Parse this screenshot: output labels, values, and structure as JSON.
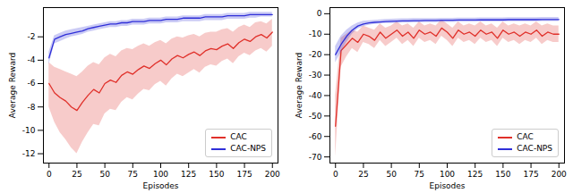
{
  "chart_data": [
    {
      "type": "line",
      "xlabel": "Episodes",
      "ylabel": "Average Reward",
      "x": [
        0,
        5,
        10,
        15,
        20,
        25,
        30,
        35,
        40,
        45,
        50,
        55,
        60,
        65,
        70,
        75,
        80,
        85,
        90,
        95,
        100,
        105,
        110,
        115,
        120,
        125,
        130,
        135,
        140,
        145,
        150,
        155,
        160,
        165,
        170,
        175,
        180,
        185,
        190,
        195,
        200
      ],
      "xlim": [
        -5,
        205
      ],
      "xticks": [
        0,
        25,
        50,
        75,
        100,
        125,
        150,
        175,
        200
      ],
      "ylim": [
        -12.8,
        0.5
      ],
      "yticks": [
        -2,
        -4,
        -6,
        -8,
        -10,
        -12
      ],
      "legend": "lower right",
      "series": [
        {
          "name": "CAC",
          "color": "#e0302a",
          "values": [
            -6.0,
            -6.8,
            -7.2,
            -7.5,
            -8.0,
            -8.3,
            -7.6,
            -7.0,
            -6.5,
            -6.8,
            -6.0,
            -5.7,
            -5.9,
            -5.3,
            -5.0,
            -5.2,
            -4.8,
            -4.5,
            -4.7,
            -4.3,
            -4.0,
            -4.4,
            -3.9,
            -3.6,
            -3.8,
            -3.5,
            -3.3,
            -3.6,
            -3.2,
            -3.0,
            -3.1,
            -2.8,
            -2.6,
            -3.0,
            -2.5,
            -2.2,
            -2.4,
            -2.0,
            -1.8,
            -2.1,
            -1.6
          ],
          "lower": [
            -8.0,
            -9.3,
            -10.2,
            -10.8,
            -11.5,
            -12.0,
            -11.0,
            -10.2,
            -9.5,
            -9.6,
            -8.6,
            -8.2,
            -8.3,
            -7.6,
            -7.2,
            -7.4,
            -6.9,
            -6.5,
            -6.6,
            -6.1,
            -5.8,
            -6.2,
            -5.6,
            -5.2,
            -5.4,
            -5.1,
            -4.8,
            -5.1,
            -4.6,
            -4.4,
            -4.5,
            -4.1,
            -3.9,
            -4.3,
            -3.7,
            -3.4,
            -3.6,
            -3.2,
            -3.0,
            -3.3,
            -2.8
          ],
          "upper": [
            -4.2,
            -4.6,
            -4.8,
            -5.0,
            -5.2,
            -5.4,
            -5.0,
            -4.5,
            -4.2,
            -4.4,
            -3.8,
            -3.5,
            -3.7,
            -3.2,
            -3.0,
            -3.1,
            -2.8,
            -2.6,
            -2.8,
            -2.5,
            -2.3,
            -2.6,
            -2.2,
            -2.0,
            -2.1,
            -1.9,
            -1.8,
            -2.0,
            -1.7,
            -1.6,
            -1.6,
            -1.4,
            -1.3,
            -1.6,
            -1.2,
            -1.0,
            -1.2,
            -0.8,
            -0.7,
            -0.9,
            -0.5
          ]
        },
        {
          "name": "CAC-NPS",
          "color": "#2f2fd8",
          "values": [
            -3.8,
            -2.2,
            -2.0,
            -1.8,
            -1.7,
            -1.6,
            -1.5,
            -1.3,
            -1.2,
            -1.1,
            -1.0,
            -0.9,
            -0.9,
            -0.8,
            -0.8,
            -0.7,
            -0.7,
            -0.7,
            -0.6,
            -0.6,
            -0.6,
            -0.5,
            -0.5,
            -0.5,
            -0.4,
            -0.4,
            -0.4,
            -0.4,
            -0.3,
            -0.3,
            -0.3,
            -0.3,
            -0.2,
            -0.2,
            -0.2,
            -0.2,
            -0.1,
            -0.1,
            -0.1,
            -0.1,
            -0.1
          ],
          "lower": [
            -4.4,
            -2.6,
            -2.4,
            -2.2,
            -2.0,
            -1.9,
            -1.8,
            -1.6,
            -1.5,
            -1.4,
            -1.3,
            -1.2,
            -1.2,
            -1.1,
            -1.1,
            -1.0,
            -1.0,
            -1.0,
            -0.9,
            -0.9,
            -0.9,
            -0.8,
            -0.8,
            -0.8,
            -0.7,
            -0.7,
            -0.7,
            -0.7,
            -0.6,
            -0.6,
            -0.6,
            -0.6,
            -0.5,
            -0.5,
            -0.5,
            -0.5,
            -0.4,
            -0.4,
            -0.3,
            -0.3,
            -0.3
          ],
          "upper": [
            -3.3,
            -1.9,
            -1.7,
            -1.5,
            -1.4,
            -1.3,
            -1.2,
            -1.1,
            -1.0,
            -0.9,
            -0.8,
            -0.7,
            -0.7,
            -0.6,
            -0.6,
            -0.5,
            -0.5,
            -0.5,
            -0.4,
            -0.4,
            -0.4,
            -0.3,
            -0.3,
            -0.3,
            -0.2,
            -0.2,
            -0.2,
            -0.2,
            -0.1,
            -0.1,
            -0.1,
            -0.1,
            0.0,
            0.0,
            0.0,
            0.0,
            0.1,
            0.1,
            0.1,
            0.1,
            0.1
          ]
        }
      ]
    },
    {
      "type": "line",
      "xlabel": "Episodes",
      "ylabel": "Average Reward",
      "x": [
        0,
        5,
        10,
        15,
        20,
        25,
        30,
        35,
        40,
        45,
        50,
        55,
        60,
        65,
        70,
        75,
        80,
        85,
        90,
        95,
        100,
        105,
        110,
        115,
        120,
        125,
        130,
        135,
        140,
        145,
        150,
        155,
        160,
        165,
        170,
        175,
        180,
        185,
        190,
        195,
        200
      ],
      "xlim": [
        -5,
        205
      ],
      "xticks": [
        0,
        25,
        50,
        75,
        100,
        125,
        150,
        175,
        200
      ],
      "ylim": [
        -73,
        3
      ],
      "yticks": [
        0,
        -10,
        -20,
        -30,
        -40,
        -50,
        -60,
        -70
      ],
      "legend": "lower right",
      "series": [
        {
          "name": "CAC",
          "color": "#e0302a",
          "values": [
            -55,
            -18,
            -15,
            -12,
            -14,
            -10,
            -11,
            -13,
            -9,
            -12,
            -10,
            -8,
            -11,
            -9,
            -12,
            -8,
            -10,
            -9,
            -11,
            -7,
            -9,
            -12,
            -8,
            -10,
            -9,
            -11,
            -8,
            -10,
            -9,
            -12,
            -8,
            -10,
            -9,
            -11,
            -9,
            -10,
            -8,
            -11,
            -9,
            -10,
            -10
          ],
          "lower": [
            -70,
            -26,
            -21,
            -17,
            -19,
            -14,
            -15,
            -17,
            -13,
            -16,
            -14,
            -12,
            -15,
            -13,
            -16,
            -12,
            -14,
            -13,
            -15,
            -11,
            -13,
            -16,
            -12,
            -14,
            -13,
            -15,
            -12,
            -14,
            -13,
            -16,
            -12,
            -14,
            -13,
            -15,
            -13,
            -14,
            -12,
            -15,
            -13,
            -14,
            -14
          ],
          "upper": [
            -40,
            -12,
            -10,
            -8,
            -9,
            -6,
            -7,
            -8,
            -5,
            -7,
            -6,
            -4,
            -6,
            -5,
            -7,
            -4,
            -6,
            -5,
            -6,
            -3,
            -5,
            -7,
            -4,
            -6,
            -5,
            -6,
            -4,
            -6,
            -5,
            -7,
            -4,
            -6,
            -5,
            -6,
            -5,
            -6,
            -4,
            -6,
            -5,
            -6,
            -6
          ]
        },
        {
          "name": "CAC-NPS",
          "color": "#2f2fd8",
          "values": [
            -20,
            -15,
            -11,
            -8,
            -6,
            -5,
            -4.5,
            -4.2,
            -4,
            -3.8,
            -3.7,
            -3.6,
            -3.5,
            -3.5,
            -3.4,
            -3.4,
            -3.3,
            -3.3,
            -3.3,
            -3.2,
            -3.2,
            -3.2,
            -3.1,
            -3.1,
            -3.1,
            -3.1,
            -3.0,
            -3.0,
            -3.0,
            -3.0,
            -3.0,
            -2.9,
            -2.9,
            -2.9,
            -2.9,
            -2.9,
            -2.9,
            -2.8,
            -2.8,
            -2.8,
            -2.8
          ],
          "lower": [
            -24,
            -19,
            -14,
            -10,
            -7.5,
            -6.3,
            -5.6,
            -5.2,
            -5.0,
            -4.8,
            -4.7,
            -4.6,
            -4.5,
            -4.5,
            -4.4,
            -4.4,
            -4.3,
            -4.3,
            -4.3,
            -4.2,
            -4.2,
            -4.2,
            -4.1,
            -4.1,
            -4.1,
            -4.1,
            -4.0,
            -4.0,
            -4.0,
            -4.0,
            -4.0,
            -3.9,
            -3.9,
            -3.9,
            -3.9,
            -3.9,
            -3.9,
            -3.8,
            -3.8,
            -3.8,
            -3.8
          ],
          "upper": [
            -16,
            -11,
            -8,
            -6,
            -4.5,
            -3.7,
            -3.4,
            -3.2,
            -3.0,
            -2.8,
            -2.7,
            -2.6,
            -2.5,
            -2.5,
            -2.4,
            -2.4,
            -2.3,
            -2.3,
            -2.3,
            -2.2,
            -2.2,
            -2.2,
            -2.1,
            -2.1,
            -2.1,
            -2.1,
            -2.0,
            -2.0,
            -2.0,
            -2.0,
            -2.0,
            -1.9,
            -1.9,
            -1.9,
            -1.9,
            -1.9,
            -1.9,
            -1.8,
            -1.8,
            -1.8,
            -1.8
          ]
        }
      ]
    }
  ]
}
